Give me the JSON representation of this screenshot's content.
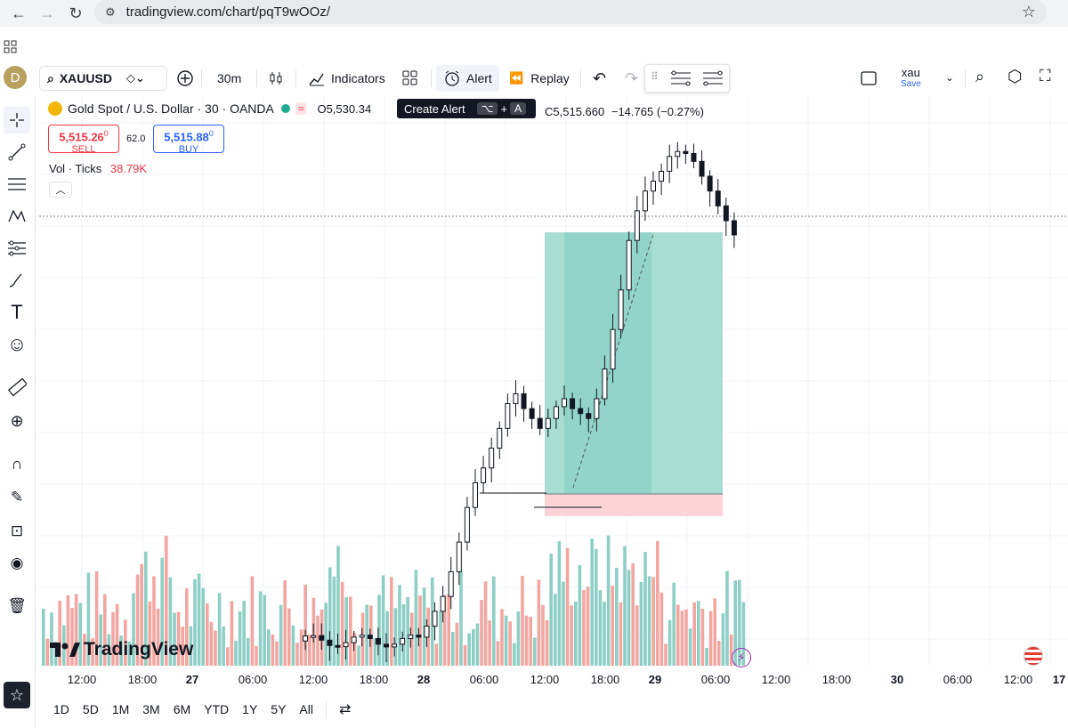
{
  "browser": {
    "url": "tradingview.com/chart/pqT9wOOz/",
    "back_icon": "back-arrow-icon",
    "forward_icon": "forward-arrow-icon",
    "reload_icon": "reload-icon"
  },
  "header": {
    "avatar_letter": "D",
    "symbol": "XAUUSD",
    "interval": "30m",
    "indicators_label": "Indicators",
    "alert_label": "Alert",
    "replay_label": "Replay",
    "layout_name": "xau",
    "layout_status": "Save"
  },
  "tooltip": {
    "label": "Create Alert",
    "key1": "⌥",
    "plus": "+",
    "key2": "A"
  },
  "legend": {
    "title": "Gold Spot / U.S. Dollar · 30 · OANDA",
    "open": "O5,530.34",
    "close": "C5,515.660",
    "change": "−14.765 (−0.27%)"
  },
  "trade": {
    "sell_price_main": "5,515.26",
    "sell_price_sup": "0",
    "sell_label": "SELL",
    "spread": "62.0",
    "buy_price_main": "5,515.88",
    "buy_price_sup": "0",
    "buy_label": "BUY"
  },
  "volume": {
    "label": "Vol · Ticks",
    "value": "38.79K"
  },
  "time_axis": [
    "12:00",
    "18:00",
    "27",
    "06:00",
    "12:00",
    "18:00",
    "28",
    "06:00",
    "12:00",
    "18:00",
    "29",
    "06:00",
    "12:00",
    "18:00",
    "30",
    "06:00",
    "12:00",
    "17"
  ],
  "ranges": [
    "1D",
    "5D",
    "1M",
    "3M",
    "6M",
    "YTD",
    "1Y",
    "5Y",
    "All"
  ],
  "watermark": "TradingView",
  "colors": {
    "up": "#ffffff",
    "down": "#131722",
    "vol_up": "#8ecfc5",
    "vol_down": "#f3a6a1",
    "target_zone": "#a8ddd2",
    "stop_zone": "#fcd3d6"
  },
  "chart_data": {
    "type": "candlestick",
    "series": [
      {
        "name": "XAUUSD",
        "values": [
          5120,
          5135,
          5150,
          5175,
          5205,
          5240,
          5265,
          5280,
          5300,
          5320,
          5345,
          5355,
          5340,
          5330,
          5320,
          5330,
          5342,
          5350,
          5340,
          5335,
          5330,
          5350,
          5380,
          5420,
          5460,
          5510,
          5540,
          5560,
          5570,
          5580,
          5595,
          5600,
          5598,
          5590,
          5575,
          5560,
          5545,
          5530,
          5515.66
        ]
      }
    ]
  }
}
